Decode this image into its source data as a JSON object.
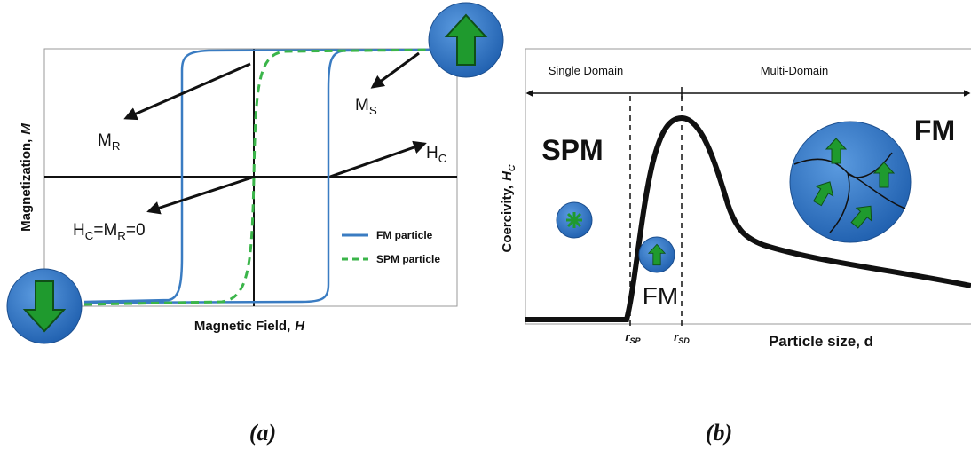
{
  "panel_a": {
    "y_axis_label": {
      "text": "Magnetization,",
      "symbol": "M"
    },
    "x_axis_label": {
      "text": "Magnetic Field,",
      "symbol": "H"
    },
    "m_r": {
      "base": "M",
      "subscript": "R"
    },
    "m_s": {
      "base": "M",
      "subscript": "S"
    },
    "h_c": {
      "base": "H",
      "subscript": "C"
    },
    "hc_mr_zero": [
      {
        "base": "H",
        "subscript": "C"
      },
      {
        "base": "=M",
        "subscript": "R"
      },
      {
        "base": "=0"
      }
    ],
    "legend": [
      {
        "label": "FM particle",
        "color": "#3a7cc2"
      },
      {
        "label": "SPM particle",
        "color": "#3bb54a"
      }
    ],
    "caption": "(a)"
  },
  "panel_b": {
    "single_domain": "Single Domain",
    "multi_domain": "Multi-Domain",
    "spm": "SPM",
    "fm_small": "FM",
    "fm_large": "FM",
    "y_axis_label": {
      "text": "Coercivity,",
      "base": "H",
      "subscript": "C"
    },
    "r_sp": {
      "base": "r",
      "subscript": "SP"
    },
    "r_sd": {
      "base": "r",
      "subscript": "SD"
    },
    "x_axis_label": "Particle size, d",
    "caption": "(b)"
  }
}
